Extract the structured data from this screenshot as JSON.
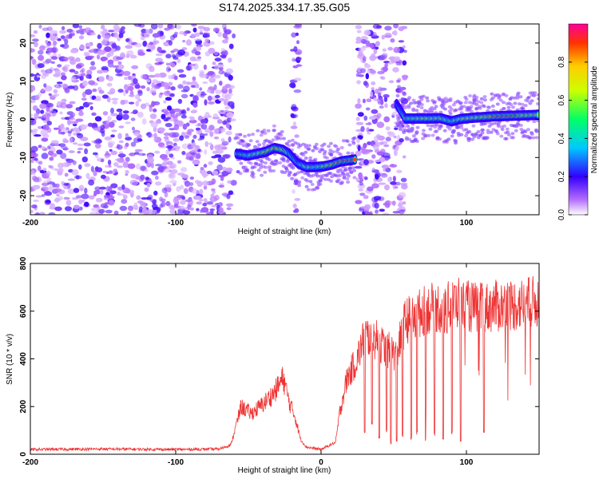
{
  "title": "S174.2025.334.17.35.G05",
  "chart_data": [
    {
      "type": "heatmap",
      "name": "spectrogram",
      "xlabel": "Height of straight line (km)",
      "ylabel": "Frequency (Hz)",
      "xlim": [
        -200,
        150
      ],
      "ylim": [
        -25,
        25
      ],
      "xticks": [
        -200,
        -100,
        0,
        100
      ],
      "yticks": [
        -20,
        -10,
        0,
        10,
        20
      ],
      "colorbar": {
        "label": "Normalized spectral amplitude",
        "range": [
          0,
          1
        ],
        "ticks": [
          0.0,
          0.2,
          0.4,
          0.6,
          0.8
        ]
      },
      "noise_regions_km": [
        [
          -200,
          -60
        ],
        [
          -20,
          -15
        ],
        [
          25,
          58
        ]
      ],
      "signal_track": [
        {
          "x": -58,
          "y": -9,
          "amp": 0.45
        },
        {
          "x": -50,
          "y": -9.5,
          "amp": 0.55
        },
        {
          "x": -44,
          "y": -9,
          "amp": 0.6
        },
        {
          "x": -38,
          "y": -8.5,
          "amp": 0.75
        },
        {
          "x": -32,
          "y": -7.5,
          "amp": 0.8
        },
        {
          "x": -26,
          "y": -8,
          "amp": 0.7
        },
        {
          "x": -22,
          "y": -9,
          "amp": 0.5
        },
        {
          "x": -16,
          "y": -11.5,
          "amp": 0.45
        },
        {
          "x": -10,
          "y": -12.5,
          "amp": 0.6
        },
        {
          "x": -4,
          "y": -12.5,
          "amp": 0.55
        },
        {
          "x": 2,
          "y": -12.3,
          "amp": 0.65
        },
        {
          "x": 8,
          "y": -11.8,
          "amp": 0.8
        },
        {
          "x": 14,
          "y": -11,
          "amp": 0.9
        },
        {
          "x": 20,
          "y": -10.7,
          "amp": 1.0
        },
        {
          "x": 24,
          "y": -10.5,
          "amp": 0.8
        },
        {
          "x": 52,
          "y": 4,
          "amp": 0.3
        },
        {
          "x": 58,
          "y": 0.2,
          "amp": 0.55
        },
        {
          "x": 66,
          "y": 0.2,
          "amp": 0.6
        },
        {
          "x": 74,
          "y": 0.2,
          "amp": 0.65
        },
        {
          "x": 82,
          "y": 0.3,
          "amp": 0.6
        },
        {
          "x": 90,
          "y": -0.5,
          "amp": 0.55
        },
        {
          "x": 96,
          "y": 0.1,
          "amp": 0.6
        },
        {
          "x": 104,
          "y": 0.4,
          "amp": 0.65
        },
        {
          "x": 112,
          "y": 0.6,
          "amp": 0.75
        },
        {
          "x": 120,
          "y": 0.8,
          "amp": 0.9
        },
        {
          "x": 128,
          "y": 0.9,
          "amp": 1.0
        },
        {
          "x": 136,
          "y": 1.0,
          "amp": 0.85
        },
        {
          "x": 144,
          "y": 1.1,
          "amp": 0.7
        },
        {
          "x": 150,
          "y": 1.2,
          "amp": 0.6
        }
      ]
    },
    {
      "type": "line",
      "name": "snr",
      "xlabel": "Height of straight line (km)",
      "ylabel": "SNR (10 * v/v)",
      "xlim": [
        -200,
        150
      ],
      "ylim": [
        0,
        800
      ],
      "xticks": [
        -200,
        -100,
        0,
        100
      ],
      "yticks": [
        0,
        200,
        400,
        600,
        800
      ],
      "color": "#ee3333",
      "x": [
        -200,
        -150,
        -100,
        -70,
        -62,
        -55,
        -48,
        -40,
        -32,
        -26,
        -22,
        -18,
        -14,
        -10,
        -5,
        0,
        5,
        10,
        13,
        15,
        18,
        25,
        30,
        38,
        45,
        52,
        58,
        65,
        70,
        75,
        80,
        85,
        90,
        95,
        100,
        110,
        120,
        130,
        140,
        150
      ],
      "values": [
        20,
        22,
        20,
        22,
        40,
        200,
        170,
        210,
        260,
        320,
        220,
        160,
        60,
        30,
        25,
        20,
        35,
        50,
        180,
        240,
        320,
        400,
        500,
        480,
        440,
        420,
        560,
        580,
        600,
        610,
        620,
        600,
        630,
        640,
        620,
        610,
        620,
        625,
        630,
        640
      ],
      "dropouts": [
        {
          "x": 30,
          "y": 80
        },
        {
          "x": 35,
          "y": 120
        },
        {
          "x": 40,
          "y": 60
        },
        {
          "x": 45,
          "y": 90
        },
        {
          "x": 48,
          "y": 40
        },
        {
          "x": 52,
          "y": 50
        },
        {
          "x": 56,
          "y": 70
        },
        {
          "x": 62,
          "y": 60
        },
        {
          "x": 66,
          "y": 80
        },
        {
          "x": 72,
          "y": 50
        },
        {
          "x": 78,
          "y": 70
        },
        {
          "x": 84,
          "y": 60
        },
        {
          "x": 90,
          "y": 80
        },
        {
          "x": 96,
          "y": 50
        },
        {
          "x": 112,
          "y": 90
        }
      ]
    }
  ]
}
